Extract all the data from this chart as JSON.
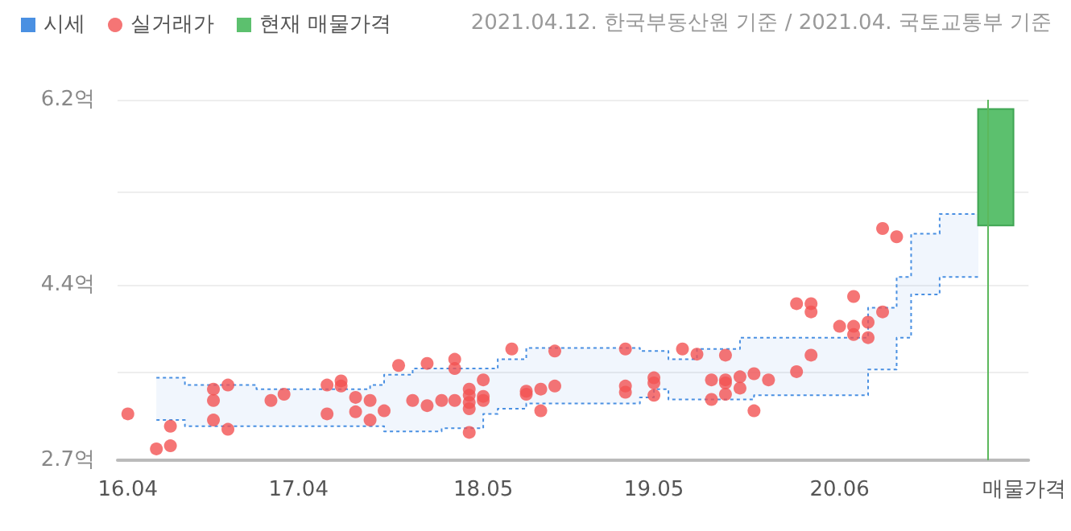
{
  "chart_data": {
    "type": "scatter",
    "annotations": [
      "2021.04.12. 한국부동산원 기준 / 2021.04. 국토교통부 기준"
    ],
    "xlim": [
      "2016-03-10",
      "2021-07-10"
    ],
    "xticks": [
      {
        "value": "2016-04",
        "label": "16.04"
      },
      {
        "value": "2017-04",
        "label": "17.04"
      },
      {
        "value": "2018-05",
        "label": "18.05"
      },
      {
        "value": "2019-05",
        "label": "19.05"
      },
      {
        "value": "2020-06",
        "label": "20.06"
      },
      {
        "value": "2021-07",
        "label": "매물가격"
      }
    ],
    "ylim": [
      2.7,
      6.2
    ],
    "yticks": [
      {
        "value": 2.7,
        "label": "2.7억"
      },
      {
        "value": 3.55,
        "label": null
      },
      {
        "value": 4.4,
        "label": "4.4억"
      },
      {
        "value": 5.3,
        "label": null
      },
      {
        "value": 6.2,
        "label": "6.2억"
      }
    ],
    "grid": "y",
    "legend": "top left",
    "ref_lines": [
      {
        "axis": "x",
        "value": "2021-04-12",
        "color": "#5cb85c"
      }
    ],
    "series": [
      {
        "name": "시세",
        "type": "step",
        "color": "#4a90e2",
        "line_style": "dotted",
        "x": [
          "2016-06",
          "2016-08",
          "2017-01",
          "2017-09",
          "2017-10",
          "2017-12",
          "2018-02",
          "2018-05",
          "2018-06",
          "2018-08",
          "2019-04",
          "2019-05",
          "2019-06",
          "2019-08",
          "2019-11",
          "2019-12",
          "2020-08",
          "2020-10",
          "2020-11",
          "2021-01",
          "2021-03-25"
        ],
        "values": [
          3.5,
          3.43,
          3.39,
          3.43,
          3.53,
          3.59,
          3.59,
          3.59,
          3.68,
          3.79,
          3.76,
          3.76,
          3.68,
          3.78,
          3.89,
          3.89,
          4.18,
          4.48,
          4.9,
          5.09,
          5.09
        ],
        "upper": [
          3.5,
          3.43,
          3.39,
          3.43,
          3.53,
          3.59,
          3.59,
          3.59,
          3.68,
          3.79,
          3.76,
          3.76,
          3.68,
          3.78,
          3.89,
          3.89,
          4.18,
          4.48,
          4.9,
          5.09,
          5.09
        ],
        "lower": [
          3.09,
          3.03,
          3.03,
          3.03,
          2.98,
          2.98,
          3.01,
          3.15,
          3.2,
          3.25,
          3.31,
          3.39,
          3.29,
          3.29,
          3.29,
          3.33,
          3.58,
          3.89,
          4.31,
          4.48,
          4.48
        ]
      },
      {
        "type": "step",
        "color": "#4a90e2",
        "line_style": "dotted",
        "x": [
          "2016-06",
          "2016-08",
          "2017-01",
          "2017-09",
          "2017-10",
          "2017-12",
          "2018-02",
          "2018-05",
          "2018-06",
          "2018-08",
          "2019-04",
          "2019-05",
          "2019-06",
          "2019-08",
          "2019-11",
          "2019-12",
          "2020-08",
          "2020-10",
          "2020-11",
          "2021-01",
          "2021-03-25"
        ],
        "values": [
          3.09,
          3.03,
          3.03,
          3.03,
          2.98,
          2.98,
          3.01,
          3.15,
          3.2,
          3.25,
          3.31,
          3.39,
          3.29,
          3.29,
          3.29,
          3.33,
          3.58,
          3.89,
          4.31,
          4.48,
          4.48
        ]
      },
      {
        "name": "실거래가",
        "color": "#f25252",
        "marker": "circle",
        "x": [
          "2016-04",
          "2016-06",
          "2016-07",
          "2016-07",
          "2016-10",
          "2016-10",
          "2016-10",
          "2016-11",
          "2016-11",
          "2017-02",
          "2017-03",
          "2017-06",
          "2017-06",
          "2017-07",
          "2017-07",
          "2017-08",
          "2017-08",
          "2017-09",
          "2017-09",
          "2017-10",
          "2017-11",
          "2017-12",
          "2018-01",
          "2018-01",
          "2018-02",
          "2018-03",
          "2018-03",
          "2018-03",
          "2018-04",
          "2018-04",
          "2018-04",
          "2018-04",
          "2018-04",
          "2018-05",
          "2018-05",
          "2018-05",
          "2018-07",
          "2018-08",
          "2018-08",
          "2018-09",
          "2018-09",
          "2018-10",
          "2018-10",
          "2019-03",
          "2019-03",
          "2019-03",
          "2019-05",
          "2019-05",
          "2019-05",
          "2019-07",
          "2019-08",
          "2019-09",
          "2019-09",
          "2019-10",
          "2019-10",
          "2019-10",
          "2019-10",
          "2019-11",
          "2019-11",
          "2019-12",
          "2019-12",
          "2020-01",
          "2020-03",
          "2020-03",
          "2020-04",
          "2020-04",
          "2020-04",
          "2020-06",
          "2020-07",
          "2020-07",
          "2020-07",
          "2020-08",
          "2020-08",
          "2020-09",
          "2020-09",
          "2020-10"
        ],
        "values": [
          3.15,
          2.81,
          2.84,
          3.03,
          3.39,
          3.28,
          3.09,
          3.43,
          3.0,
          3.28,
          3.34,
          3.43,
          3.15,
          3.47,
          3.42,
          3.31,
          3.17,
          3.28,
          3.09,
          3.18,
          3.62,
          3.28,
          3.64,
          3.23,
          3.28,
          3.68,
          3.59,
          3.28,
          3.39,
          3.33,
          3.26,
          3.2,
          2.97,
          3.48,
          3.32,
          3.28,
          3.78,
          3.34,
          3.37,
          3.39,
          3.18,
          3.76,
          3.42,
          3.78,
          3.42,
          3.36,
          3.5,
          3.45,
          3.33,
          3.78,
          3.73,
          3.48,
          3.29,
          3.72,
          3.48,
          3.45,
          3.34,
          3.51,
          3.4,
          3.54,
          3.18,
          3.48,
          4.22,
          3.56,
          4.22,
          4.14,
          3.72,
          4.0,
          4.29,
          4.0,
          3.92,
          4.04,
          3.89,
          4.14,
          4.95,
          4.87
        ]
      },
      {
        "name": "현재 매물가격",
        "type": "bar",
        "color": "#5cc06e",
        "x": [
          "2021-05"
        ],
        "base": [
          4.98
        ],
        "values": [
          1.13
        ]
      }
    ]
  }
}
